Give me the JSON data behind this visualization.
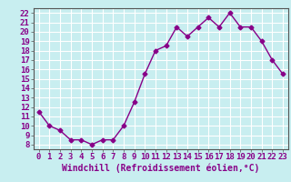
{
  "x": [
    0,
    1,
    2,
    3,
    4,
    5,
    6,
    7,
    8,
    9,
    10,
    11,
    12,
    13,
    14,
    15,
    16,
    17,
    18,
    19,
    20,
    21,
    22,
    23
  ],
  "y": [
    11.5,
    10.0,
    9.5,
    8.5,
    8.5,
    8.0,
    8.5,
    8.5,
    10.0,
    12.5,
    15.5,
    18.0,
    18.5,
    20.5,
    19.5,
    20.5,
    21.5,
    20.5,
    22.0,
    20.5,
    20.5,
    19.0,
    17.0,
    15.5
  ],
  "line_color": "#880088",
  "marker": "D",
  "markersize": 2.5,
  "linewidth": 1.0,
  "background_color": "#c8eef0",
  "grid_color": "#ffffff",
  "xlabel": "Windchill (Refroidissement éolien,°C)",
  "xlabel_fontsize": 7,
  "tick_fontsize": 6.5,
  "xlim": [
    -0.5,
    23.5
  ],
  "ylim": [
    7.5,
    22.5
  ],
  "yticks": [
    8,
    9,
    10,
    11,
    12,
    13,
    14,
    15,
    16,
    17,
    18,
    19,
    20,
    21,
    22
  ],
  "xticks": [
    0,
    1,
    2,
    3,
    4,
    5,
    6,
    7,
    8,
    9,
    10,
    11,
    12,
    13,
    14,
    15,
    16,
    17,
    18,
    19,
    20,
    21,
    22,
    23
  ]
}
